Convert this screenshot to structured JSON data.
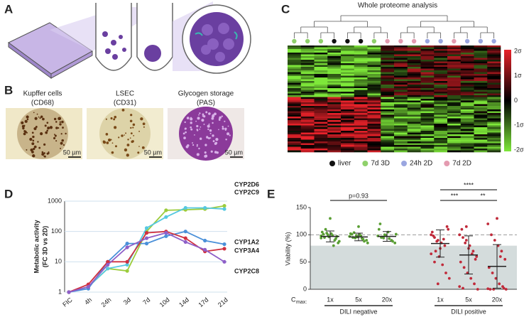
{
  "panel_labels": [
    "A",
    "B",
    "C",
    "D",
    "E"
  ],
  "panel_b": {
    "images": [
      {
        "title": "Kupffer cells",
        "subtitle": "(CD68)",
        "scale": "50 µm"
      },
      {
        "title": "LSEC",
        "subtitle": "(CD31)",
        "scale": "50 µm"
      },
      {
        "title": "Glycogen storage",
        "subtitle": "(PAS)",
        "scale": "50 µm"
      }
    ]
  },
  "panel_c": {
    "title": "Whole proteome analysis",
    "colorbar_ticks": [
      "2σ",
      "1σ",
      "0",
      "-1σ",
      "-2σ"
    ],
    "legend": [
      {
        "name": "liver",
        "color": "#111111"
      },
      {
        "name": "7d 3D",
        "color": "#8fd16b"
      },
      {
        "name": "24h 2D",
        "color": "#9aa6e0"
      },
      {
        "name": "7d 2D",
        "color": "#e49bb0"
      }
    ]
  },
  "chart_data": [
    {
      "type": "line",
      "ylabel": "Metabolic activity",
      "ylabel_sub": "(FC 3D vs 2D)",
      "categories": [
        "FIC",
        "4h",
        "24h",
        "3d",
        "7d",
        "10d",
        "14d",
        "17d",
        "21d"
      ],
      "log_y": true,
      "grid": true,
      "ylim": [
        1,
        1000
      ],
      "yticks": [
        1,
        10,
        100,
        1000
      ],
      "series": [
        {
          "name": "CYP2D6",
          "color": "#9ccc3c",
          "values": [
            1,
            1.5,
            6,
            5,
            100,
            500,
            520,
            550,
            700
          ]
        },
        {
          "name": "CYP2C9",
          "color": "#55c8e0",
          "values": [
            1,
            1.5,
            6,
            8,
            130,
            300,
            600,
            600,
            550
          ]
        },
        {
          "name": "CYP1A2",
          "color": "#4a90d9",
          "values": [
            1,
            1.3,
            10,
            40,
            40,
            70,
            100,
            50,
            38
          ]
        },
        {
          "name": "CYP3A4",
          "color": "#d03040",
          "values": [
            1,
            1.8,
            10,
            10,
            90,
            100,
            60,
            22,
            27
          ]
        },
        {
          "name": "CYP2C8",
          "color": "#8e5fc8",
          "values": [
            1,
            1.5,
            8,
            30,
            60,
            90,
            45,
            25,
            10
          ]
        }
      ]
    },
    {
      "type": "strip",
      "ylabel": "Viability (%)",
      "cmax": "C",
      "cmax_sub": "max:",
      "categories": [
        "1x",
        "5x",
        "20x",
        "1x",
        "5x",
        "20x"
      ],
      "colors": [
        "#5a9e34",
        "#5a9e34",
        "#5a9e34",
        "#c02a3a",
        "#c02a3a",
        "#c02a3a"
      ],
      "means": [
        97,
        96,
        97,
        84,
        63,
        42
      ],
      "sds": [
        10,
        7,
        9,
        25,
        35,
        40
      ],
      "points": [
        [
          98,
          95,
          100,
          102,
          90,
          85,
          105,
          110,
          96,
          99,
          93,
          88,
          101,
          103,
          130,
          80,
          97,
          94
        ],
        [
          97,
          95,
          99,
          100,
          92,
          90,
          102,
          104,
          96,
          98,
          88,
          85,
          101,
          94,
          115,
          93
        ],
        [
          98,
          95,
          100,
          105,
          90,
          85,
          110,
          96,
          99,
          93,
          88,
          101,
          120,
          94
        ],
        [
          100,
          95,
          90,
          85,
          80,
          110,
          105,
          70,
          60,
          45,
          30,
          20,
          98,
          88,
          75,
          92,
          115,
          65,
          50,
          10
        ],
        [
          100,
          95,
          90,
          80,
          70,
          60,
          50,
          40,
          30,
          20,
          10,
          0,
          110,
          85,
          75,
          65,
          55,
          5,
          2,
          115
        ],
        [
          120,
          100,
          90,
          80,
          70,
          55,
          40,
          30,
          20,
          10,
          5,
          0,
          0,
          0,
          130,
          60,
          2,
          1
        ]
      ],
      "ylim": [
        0,
        150
      ],
      "yticks": [
        0,
        50,
        100,
        150
      ],
      "reference_line": 100,
      "shade_to": 80,
      "group_labels": [
        {
          "label": "DILI negative",
          "span": [
            0,
            2
          ]
        },
        {
          "label": "DILI positive",
          "span": [
            3,
            5
          ]
        }
      ],
      "annotations": [
        {
          "text": "p=0.93",
          "from": 0,
          "to": 2
        },
        {
          "text": "****",
          "from": 3,
          "to": 5
        },
        {
          "text": "***",
          "from": 3,
          "to": 4
        },
        {
          "text": "**",
          "from": 4,
          "to": 5
        }
      ]
    }
  ]
}
